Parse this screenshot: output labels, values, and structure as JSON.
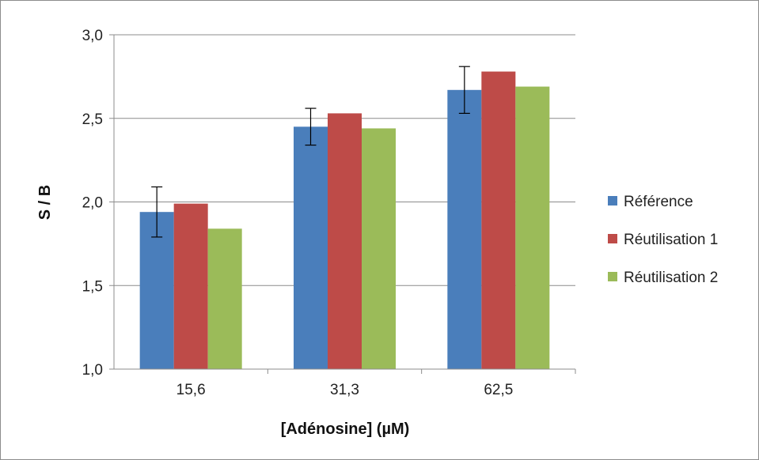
{
  "chart_data": {
    "type": "bar",
    "title": "",
    "xlabel": "[Adénosine] (µM)",
    "ylabel": "S / B",
    "categories": [
      "15,6",
      "31,3",
      "62,5"
    ],
    "y_ticks": [
      "1,0",
      "1,5",
      "2,0",
      "2,5",
      "3,0"
    ],
    "ylim": [
      1.0,
      3.0
    ],
    "grid": true,
    "legend_position": "right",
    "series": [
      {
        "name": "Référence",
        "color": "#4a7ebb",
        "values": [
          1.94,
          2.45,
          2.67
        ],
        "error": [
          0.15,
          0.11,
          0.14
        ]
      },
      {
        "name": "Réutilisation 1",
        "color": "#be4b48",
        "values": [
          1.99,
          2.53,
          2.78
        ]
      },
      {
        "name": "Réutilisation 2",
        "color": "#9bbb59",
        "values": [
          1.84,
          2.44,
          2.69
        ]
      }
    ]
  }
}
